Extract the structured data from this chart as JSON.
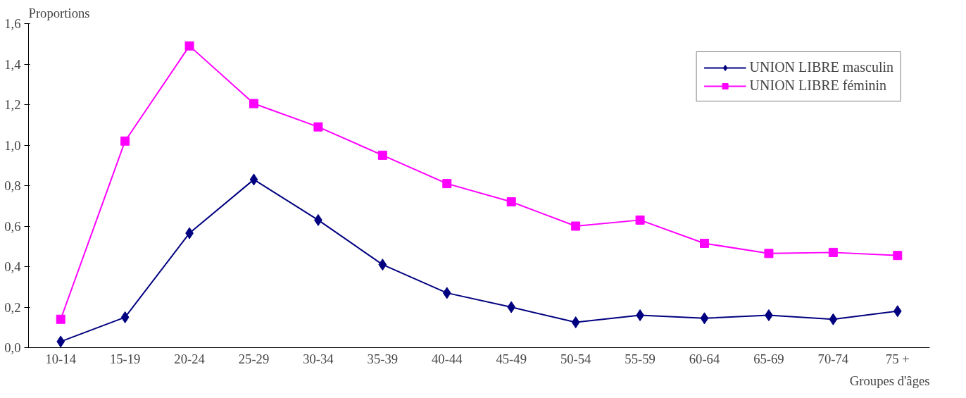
{
  "chart_data": {
    "type": "line",
    "ylabel": "Proportions",
    "xlabel": "Groupes d'âges",
    "categories": [
      "10-14",
      "15-19",
      "20-24",
      "25-29",
      "30-34",
      "35-39",
      "40-44",
      "45-49",
      "50-54",
      "55-59",
      "60-64",
      "65-69",
      "70-74",
      "75 +"
    ],
    "series": [
      {
        "name": "UNION LIBRE masculin",
        "color": "#000080",
        "marker": "diamond",
        "values": [
          0.03,
          0.15,
          0.565,
          0.83,
          0.63,
          0.41,
          0.27,
          0.2,
          0.125,
          0.16,
          0.145,
          0.16,
          0.14,
          0.18
        ]
      },
      {
        "name": "UNION LIBRE féminin",
        "color": "#ff00ff",
        "marker": "square",
        "values": [
          0.14,
          1.02,
          1.49,
          1.205,
          1.09,
          0.95,
          0.81,
          0.72,
          0.6,
          0.63,
          0.515,
          0.465,
          0.47,
          0.455
        ]
      }
    ],
    "ylim": [
      0,
      1.6
    ],
    "yticks": [
      {
        "value": 0,
        "label": "0,0"
      },
      {
        "value": 0.2,
        "label": "0,2"
      },
      {
        "value": 0.4,
        "label": "0,4"
      },
      {
        "value": 0.6,
        "label": "0,6"
      },
      {
        "value": 0.8,
        "label": "0,8"
      },
      {
        "value": 1.0,
        "label": "1,0"
      },
      {
        "value": 1.2,
        "label": "1,2"
      },
      {
        "value": 1.4,
        "label": "1,4"
      },
      {
        "value": 1.6,
        "label": "1,6"
      }
    ],
    "grid": false,
    "legend": "top right",
    "line_style": "solid"
  }
}
